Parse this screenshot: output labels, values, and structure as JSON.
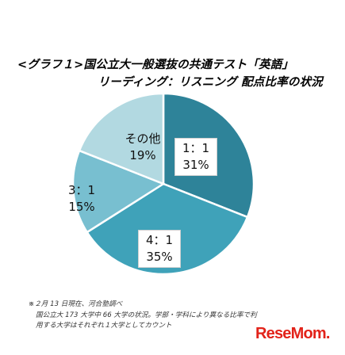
{
  "header": {
    "title_line1": "<グラフ１>国公立大一般選抜の共通テスト「英語」",
    "title_line2": "リーディング：リスニング 配点比率の状況"
  },
  "chart_data": {
    "type": "pie",
    "title": "<グラフ１>国公立大一般選抜の共通テスト「英語」 リーディング：リスニング 配点比率の状況",
    "slices": [
      {
        "ratio": "1：1",
        "value": 31,
        "label": "31%",
        "color": "#2e8399"
      },
      {
        "ratio": "4：1",
        "value": 35,
        "label": "35%",
        "color": "#3fa2b9"
      },
      {
        "ratio": "3：1",
        "value": 15,
        "label": "15%",
        "color": "#78bfd0"
      },
      {
        "ratio": "その他",
        "value": 19,
        "label": "19%",
        "color": "#b2d9e1"
      }
    ]
  },
  "notes": [
    "※２月 13 日現在、河合塾調べ",
    "国公立大 173 大学中 66 大学の状況。学部・学科により異なる比率で利",
    "用する大学はそれぞれ１大学としてカウント"
  ],
  "logo": {
    "text": "ReseMom.",
    "color": "#e2231a"
  }
}
